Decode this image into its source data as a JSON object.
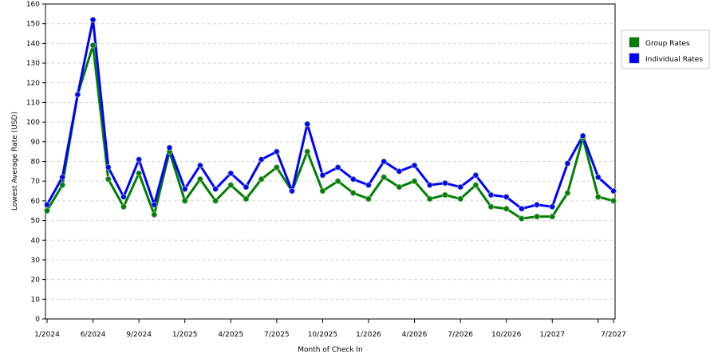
{
  "chart_data": {
    "type": "line",
    "title": "",
    "xlabel": "Month of Check In",
    "ylabel": "Lowest Average Rate (USD)",
    "ylim": [
      0,
      160
    ],
    "yticks": [
      0,
      10,
      20,
      30,
      40,
      50,
      60,
      70,
      80,
      90,
      100,
      110,
      120,
      130,
      140,
      150,
      160
    ],
    "x_ticks": [
      {
        "label": "1/2024",
        "index": 0
      },
      {
        "label": "6/2024",
        "index": 3
      },
      {
        "label": "9/2024",
        "index": 6
      },
      {
        "label": "1/2025",
        "index": 9
      },
      {
        "label": "4/2025",
        "index": 12
      },
      {
        "label": "7/2025",
        "index": 15
      },
      {
        "label": "10/2025",
        "index": 18
      },
      {
        "label": "1/2026",
        "index": 21
      },
      {
        "label": "4/2026",
        "index": 24
      },
      {
        "label": "7/2026",
        "index": 27
      },
      {
        "label": "10/2026",
        "index": 30
      },
      {
        "label": "1/2027",
        "index": 33
      },
      {
        "label": "",
        "index": 36
      },
      {
        "label": "7/2027",
        "index": 37
      }
    ],
    "grid": true,
    "legend_position": "right",
    "series": [
      {
        "name": "Group Rates",
        "color": "#008000",
        "values": [
          55,
          68,
          114,
          139,
          71,
          57,
          74,
          53,
          85,
          60,
          71,
          60,
          68,
          61,
          71,
          77,
          65,
          85,
          65,
          70,
          64,
          61,
          72,
          67,
          70,
          61,
          63,
          61,
          68,
          57,
          56,
          51,
          52,
          52,
          64,
          92,
          62,
          60
        ]
      },
      {
        "name": "Individual Rates",
        "color": "#0000ff",
        "values": [
          58,
          72,
          114,
          152,
          77,
          62,
          81,
          58,
          87,
          66,
          78,
          66,
          74,
          67,
          81,
          85,
          65,
          99,
          73,
          77,
          71,
          68,
          80,
          75,
          78,
          68,
          69,
          67,
          73,
          63,
          62,
          56,
          58,
          57,
          79,
          93,
          72,
          65
        ]
      }
    ]
  }
}
